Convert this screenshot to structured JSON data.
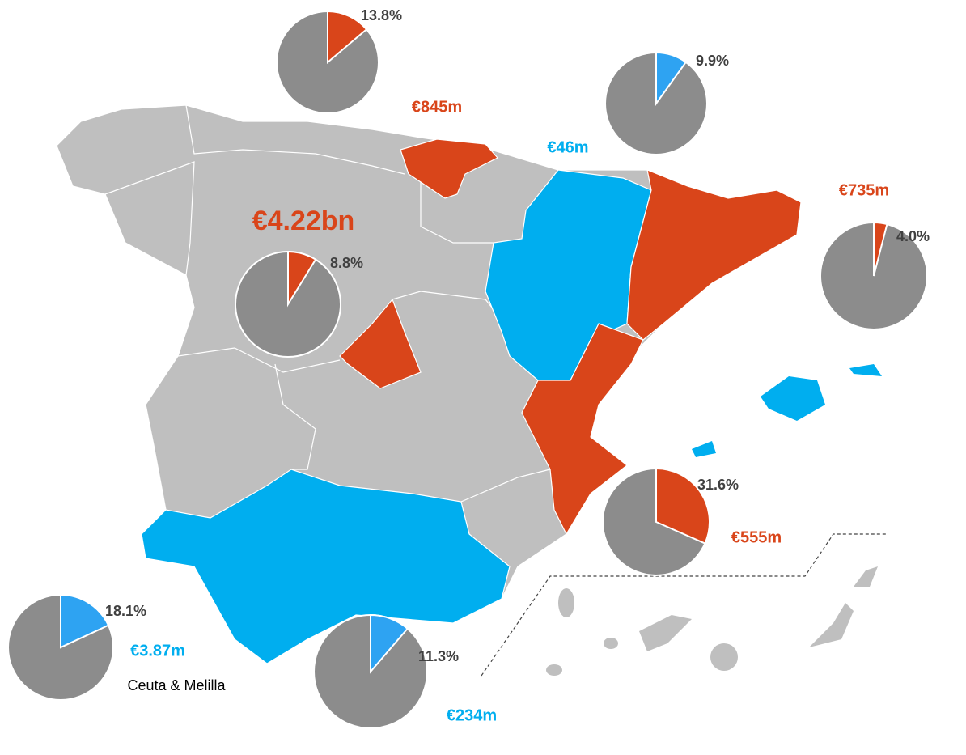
{
  "pies": [
    {
      "value": 13.8,
      "value_label": "13.8%",
      "amount": "€845m",
      "color": "#d9451a",
      "amount_color": "#d9451a"
    },
    {
      "value": 9.9,
      "value_label": "9.9%",
      "amount": "€46m",
      "color": "#2ea3f2",
      "amount_color": "#00aeef"
    },
    {
      "value": 4.0,
      "value_label": "4.0%",
      "amount": "€735m",
      "color": "#d9451a",
      "amount_color": "#d9451a"
    },
    {
      "value": 8.8,
      "value_label": "8.8%",
      "amount": "€4.22bn",
      "color": "#d9451a",
      "amount_color": "#d9451a"
    },
    {
      "value": 31.6,
      "value_label": "31.6%",
      "amount": "€555m",
      "color": "#d9451a",
      "amount_color": "#d9451a"
    },
    {
      "value": 18.1,
      "value_label": "18.1%",
      "amount": "€3.87m",
      "color": "#2ea3f2",
      "amount_color": "#00aeef",
      "region": "Ceuta & Melilla"
    },
    {
      "value": 11.3,
      "value_label": "11.3%",
      "amount": "€234m",
      "color": "#2ea3f2",
      "amount_color": "#00aeef"
    }
  ]
}
